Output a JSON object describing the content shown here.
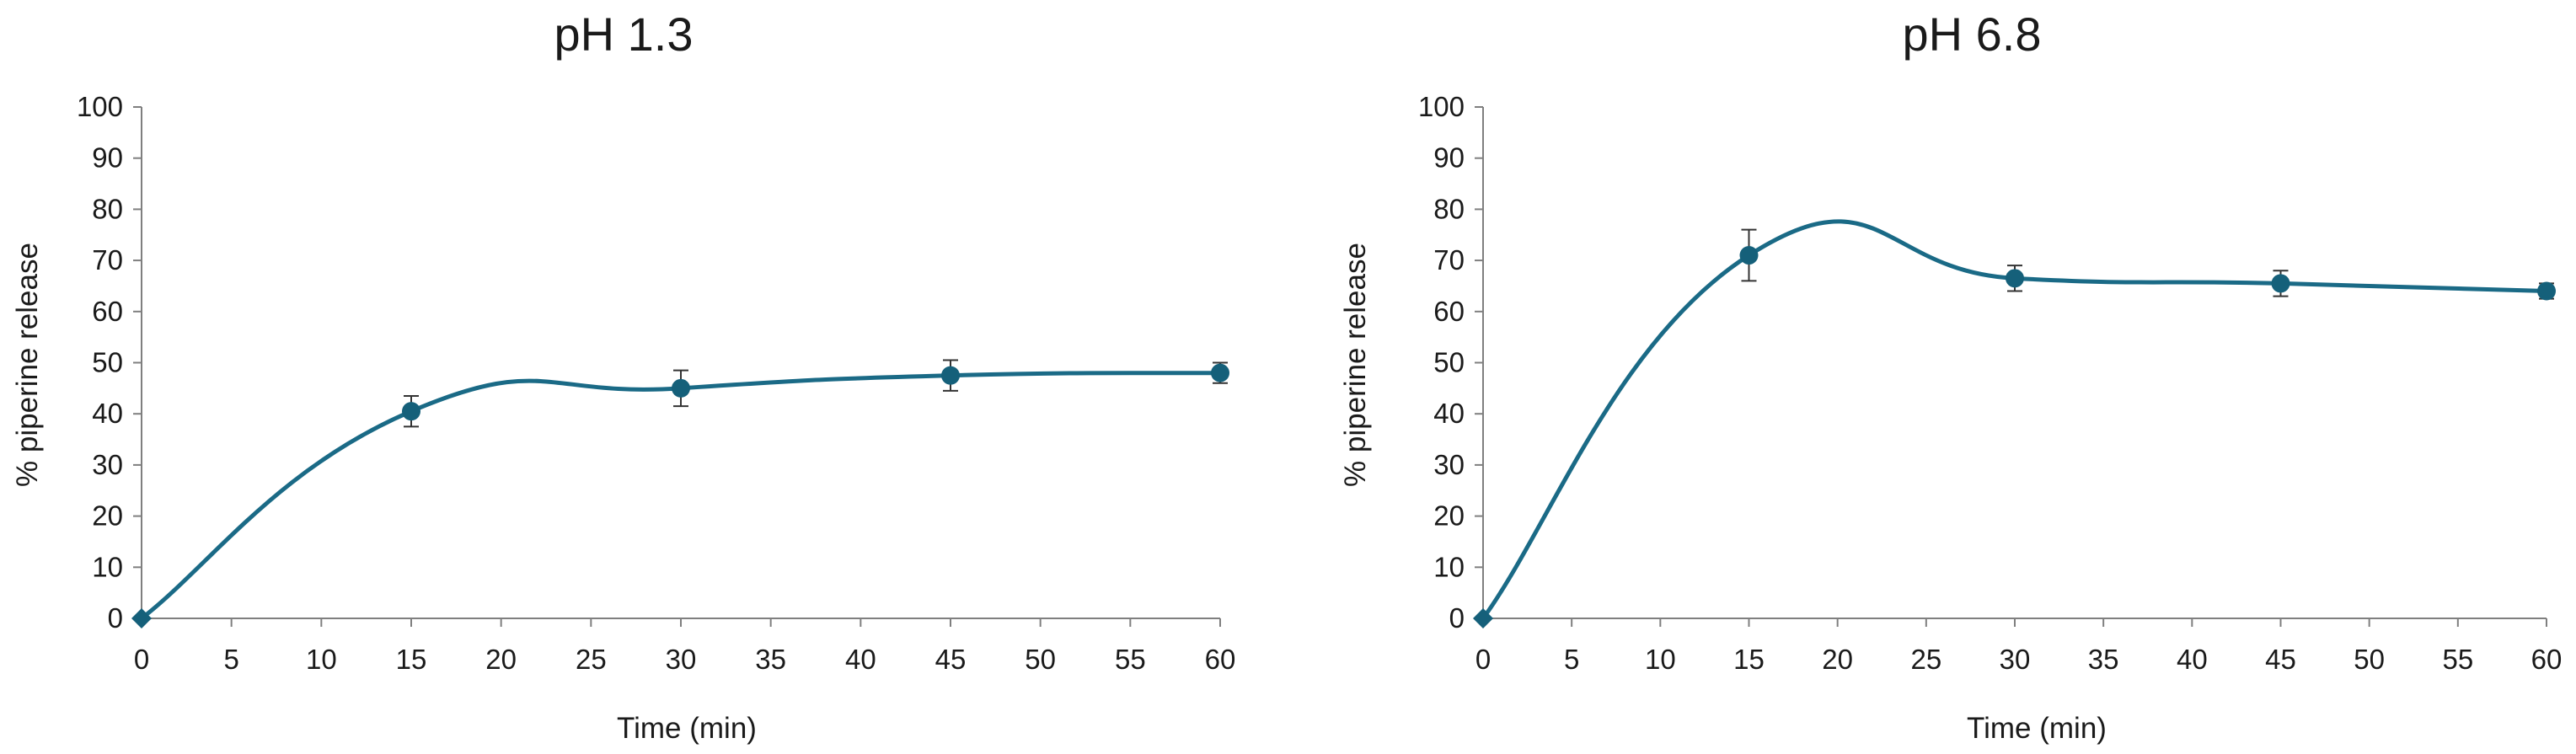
{
  "chart_data": [
    {
      "type": "scatter",
      "title": "pH 1.3",
      "xlabel": "Time (min)",
      "ylabel": "% piperine release",
      "xlim": [
        0,
        60
      ],
      "ylim": [
        0,
        100
      ],
      "xticks": [
        0,
        5,
        10,
        15,
        20,
        25,
        30,
        35,
        40,
        45,
        50,
        55,
        60
      ],
      "yticks": [
        0,
        10,
        20,
        30,
        40,
        50,
        60,
        70,
        80,
        90,
        100
      ],
      "smooth_line": true,
      "grid": false,
      "series": [
        {
          "x": [
            0,
            15,
            30,
            45,
            60
          ],
          "y": [
            0,
            40.5,
            45,
            47.5,
            48
          ],
          "error": [
            0,
            3,
            3.5,
            3,
            2
          ]
        }
      ]
    },
    {
      "type": "scatter",
      "title": "pH 6.8",
      "xlabel": "Time (min)",
      "ylabel": "% piperine release",
      "xlim": [
        0,
        60
      ],
      "ylim": [
        0,
        100
      ],
      "xticks": [
        0,
        5,
        10,
        15,
        20,
        25,
        30,
        35,
        40,
        45,
        50,
        55,
        60
      ],
      "yticks": [
        0,
        10,
        20,
        30,
        40,
        50,
        60,
        70,
        80,
        90,
        100
      ],
      "smooth_line": true,
      "grid": false,
      "series": [
        {
          "x": [
            0,
            15,
            30,
            45,
            60
          ],
          "y": [
            0,
            71,
            66.5,
            65.5,
            64
          ],
          "error": [
            0,
            5,
            2.5,
            2.5,
            1.5
          ]
        }
      ]
    }
  ],
  "colors": {
    "series": "#1a6a86",
    "marker": "#15607a",
    "axis": "#7f7f7f",
    "errorbar": "#333333"
  }
}
